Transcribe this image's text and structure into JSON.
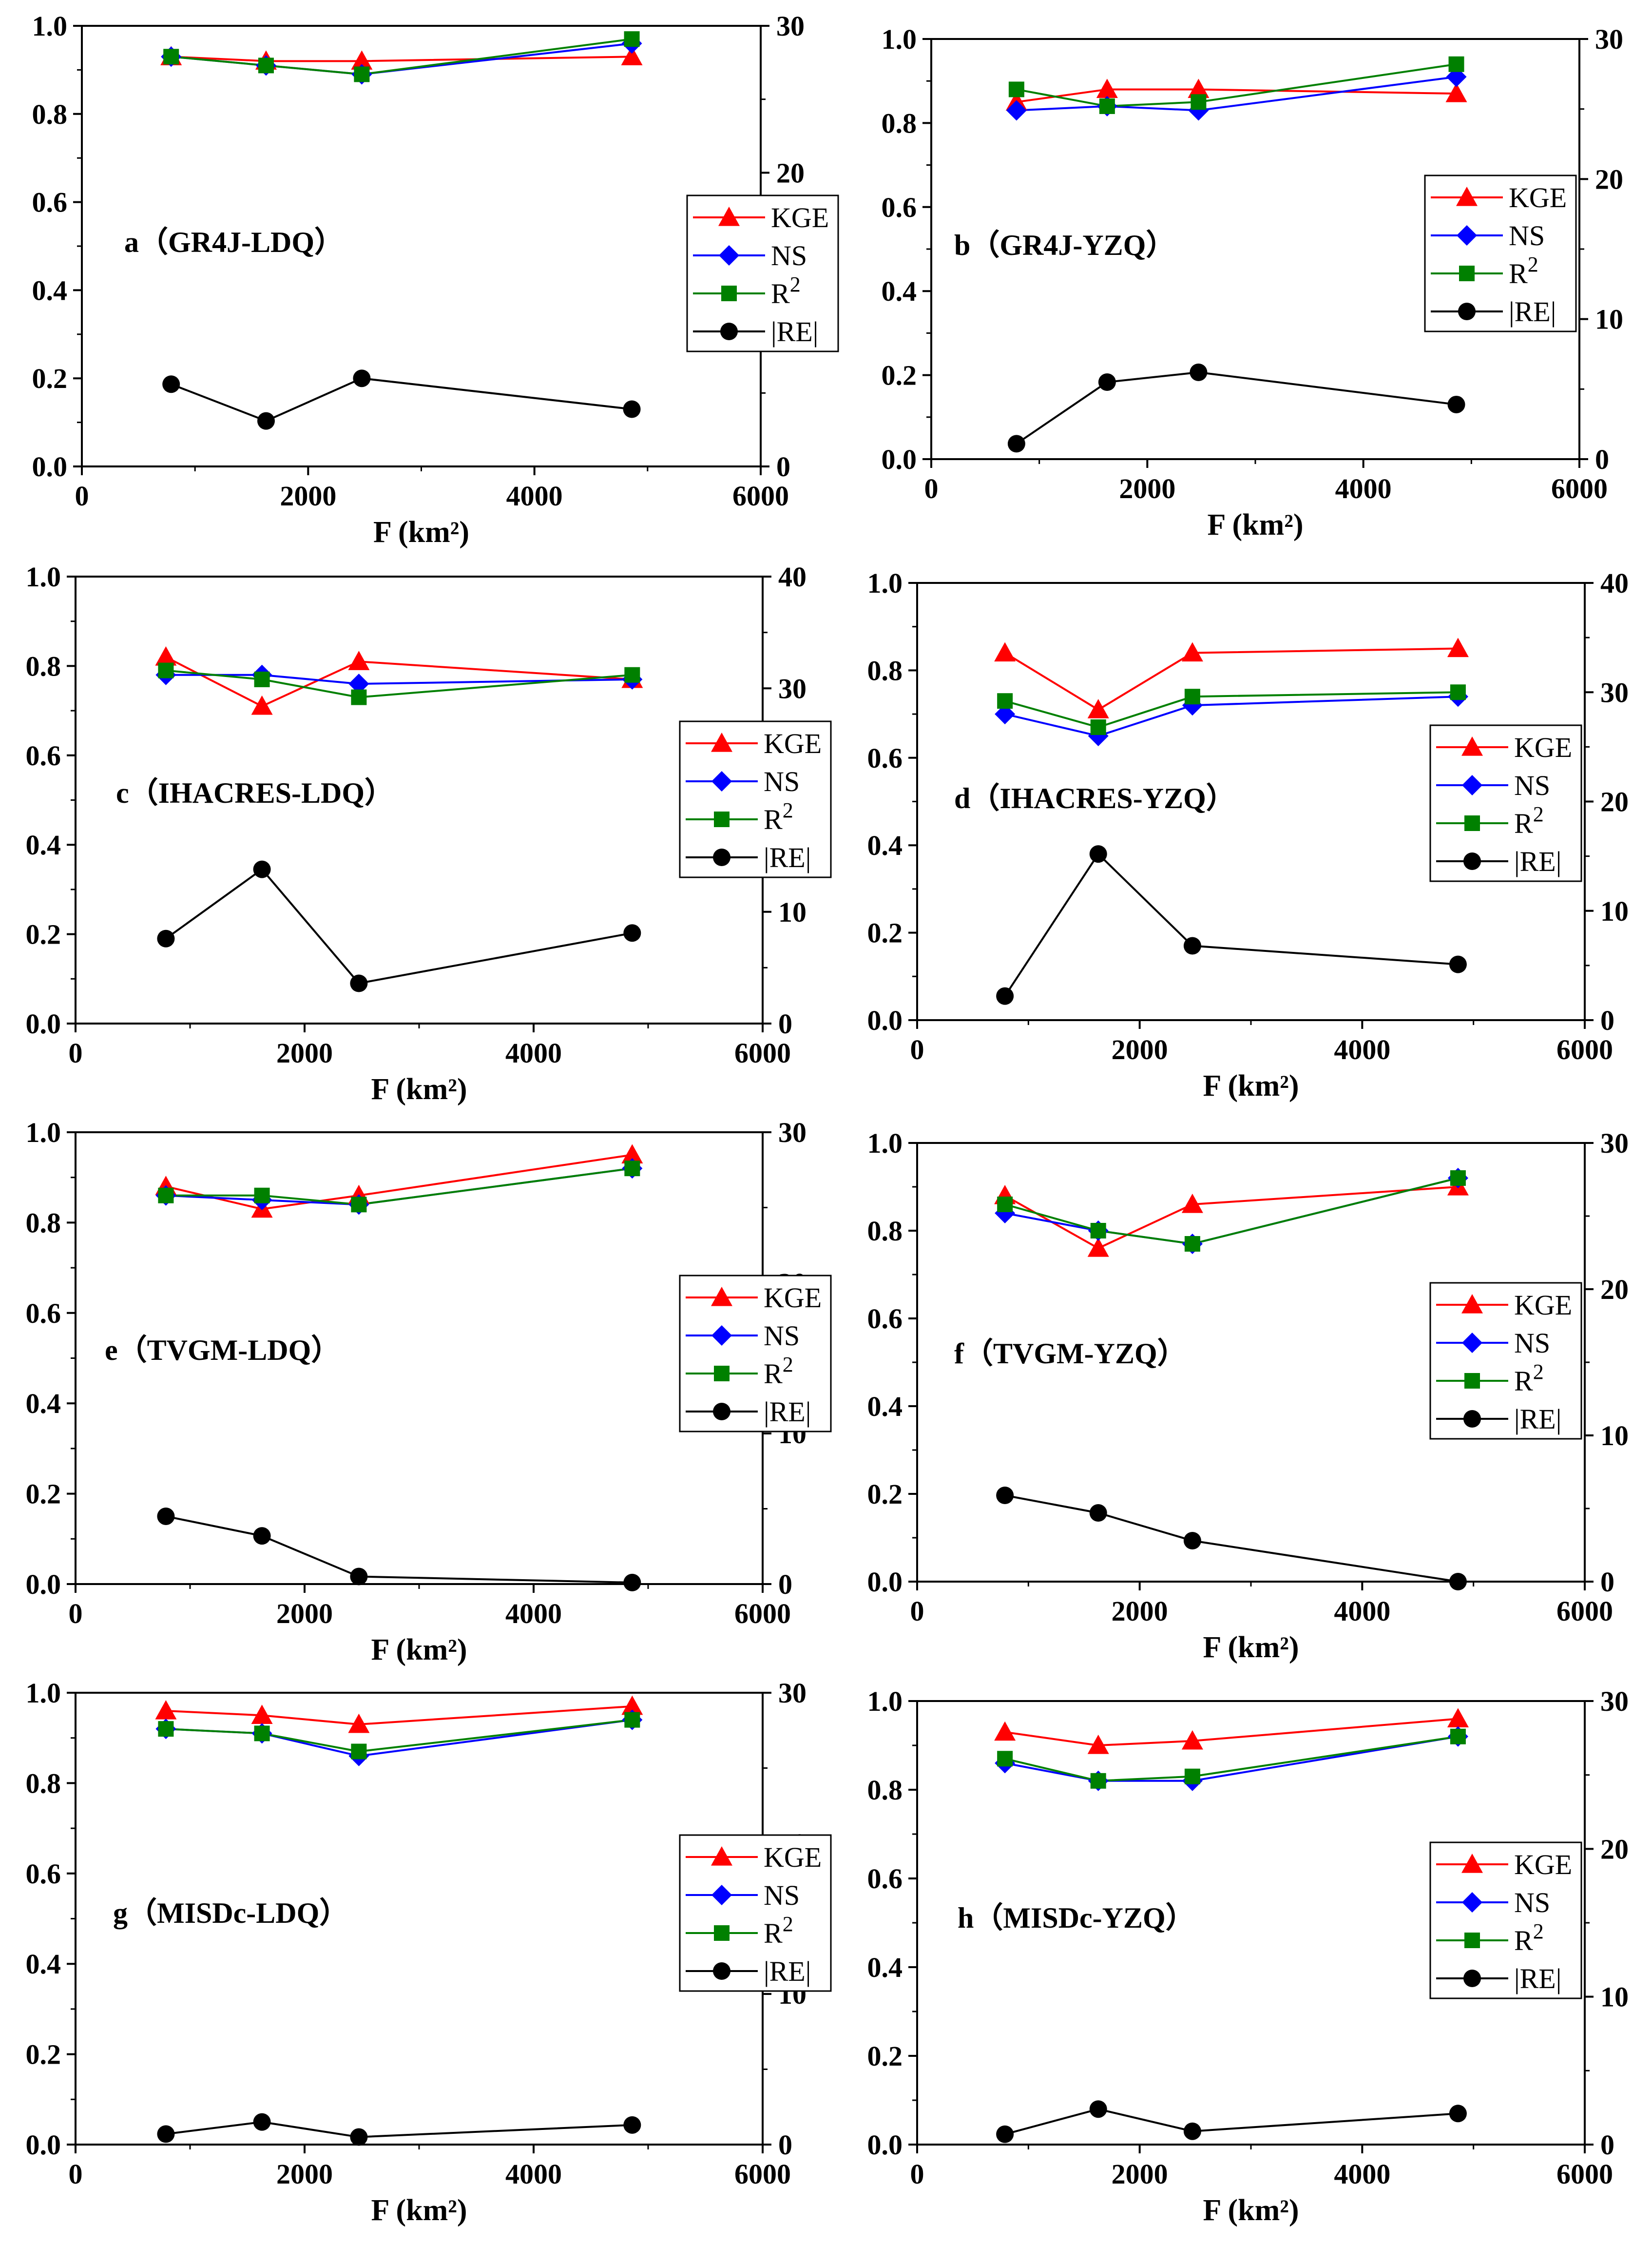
{
  "figure_title": "",
  "colors": {
    "KGE": "#ff0000",
    "NS": "#0000ff",
    "R2": "#008000",
    "RE": "#000000"
  },
  "legend": {
    "KGE": "KGE",
    "NS": "NS",
    "R2_base": "R",
    "R2_sup": "2",
    "RE": "|RE|"
  },
  "chart_data": [
    {
      "type": "line",
      "panel_label": "a（GR4J-LDQ）",
      "xlabel": "F (km²)",
      "x": [
        789,
        1628,
        2474,
        4861
      ],
      "xlim": [
        0,
        6000
      ],
      "xticks": [
        "0",
        "2000",
        "4000",
        "6000"
      ],
      "ylim_left": [
        0,
        1.0
      ],
      "yticks_left": [
        "0.0",
        "0.2",
        "0.4",
        "0.6",
        "0.8",
        "1.0"
      ],
      "ylim_right": [
        0,
        30
      ],
      "yticks_right": [
        "0",
        "10",
        "20",
        "30"
      ],
      "series": [
        {
          "name": "KGE",
          "axis": "left",
          "values": [
            0.93,
            0.92,
            0.92,
            0.93
          ]
        },
        {
          "name": "NS",
          "axis": "left",
          "values": [
            0.93,
            0.91,
            0.89,
            0.96
          ]
        },
        {
          "name": "R2",
          "axis": "left",
          "values": [
            0.93,
            0.91,
            0.89,
            0.97
          ]
        },
        {
          "name": "|RE|",
          "axis": "right",
          "values": [
            5.6,
            3.1,
            6.0,
            3.9
          ]
        }
      ]
    },
    {
      "type": "line",
      "panel_label": "b（GR4J-YZQ）",
      "xlabel": "F (km²)",
      "x": [
        789,
        1628,
        2474,
        4861
      ],
      "xlim": [
        0,
        6000
      ],
      "xticks": [
        "0",
        "2000",
        "4000",
        "6000"
      ],
      "ylim_left": [
        0,
        1.0
      ],
      "yticks_left": [
        "0.0",
        "0.2",
        "0.4",
        "0.6",
        "0.8",
        "1.0"
      ],
      "ylim_right": [
        0,
        30
      ],
      "yticks_right": [
        "0",
        "10",
        "20",
        "30"
      ],
      "series": [
        {
          "name": "KGE",
          "axis": "left",
          "values": [
            0.85,
            0.88,
            0.88,
            0.87
          ]
        },
        {
          "name": "NS",
          "axis": "left",
          "values": [
            0.83,
            0.84,
            0.83,
            0.91
          ]
        },
        {
          "name": "R2",
          "axis": "left",
          "values": [
            0.88,
            0.84,
            0.85,
            0.94
          ]
        },
        {
          "name": "|RE|",
          "axis": "right",
          "values": [
            1.1,
            5.5,
            6.2,
            3.9
          ]
        }
      ]
    },
    {
      "type": "line",
      "panel_label": "c（IHACRES-LDQ）",
      "xlabel": "F (km²)",
      "x": [
        789,
        1628,
        2474,
        4861
      ],
      "xlim": [
        0,
        6000
      ],
      "xticks": [
        "0",
        "2000",
        "4000",
        "6000"
      ],
      "ylim_left": [
        0,
        1.0
      ],
      "yticks_left": [
        "0.0",
        "0.2",
        "0.4",
        "0.6",
        "0.8",
        "1.0"
      ],
      "ylim_right": [
        0,
        40
      ],
      "yticks_right": [
        "0",
        "10",
        "20",
        "30",
        "40"
      ],
      "series": [
        {
          "name": "KGE",
          "axis": "left",
          "values": [
            0.82,
            0.71,
            0.81,
            0.77
          ]
        },
        {
          "name": "NS",
          "axis": "left",
          "values": [
            0.78,
            0.78,
            0.76,
            0.77
          ]
        },
        {
          "name": "R2",
          "axis": "left",
          "values": [
            0.79,
            0.77,
            0.73,
            0.78
          ]
        },
        {
          "name": "|RE|",
          "axis": "right",
          "values": [
            7.6,
            13.8,
            3.6,
            8.1
          ]
        }
      ]
    },
    {
      "type": "line",
      "panel_label": "d（IHACRES-YZQ）",
      "xlabel": "F (km²)",
      "x": [
        789,
        1628,
        2474,
        4861
      ],
      "xlim": [
        0,
        6000
      ],
      "xticks": [
        "0",
        "2000",
        "4000",
        "6000"
      ],
      "ylim_left": [
        0,
        1.0
      ],
      "yticks_left": [
        "0.0",
        "0.2",
        "0.4",
        "0.6",
        "0.8",
        "1.0"
      ],
      "ylim_right": [
        0,
        40
      ],
      "yticks_right": [
        "0",
        "10",
        "20",
        "30",
        "40"
      ],
      "series": [
        {
          "name": "KGE",
          "axis": "left",
          "values": [
            0.84,
            0.71,
            0.84,
            0.85
          ]
        },
        {
          "name": "NS",
          "axis": "left",
          "values": [
            0.7,
            0.65,
            0.72,
            0.74
          ]
        },
        {
          "name": "R2",
          "axis": "left",
          "values": [
            0.73,
            0.67,
            0.74,
            0.75
          ]
        },
        {
          "name": "|RE|",
          "axis": "right",
          "values": [
            2.2,
            15.2,
            6.8,
            5.1
          ]
        }
      ]
    },
    {
      "type": "line",
      "panel_label": "e（TVGM-LDQ）",
      "xlabel": "F (km²)",
      "x": [
        789,
        1628,
        2474,
        4861
      ],
      "xlim": [
        0,
        6000
      ],
      "xticks": [
        "0",
        "2000",
        "4000",
        "6000"
      ],
      "ylim_left": [
        0,
        1.0
      ],
      "yticks_left": [
        "0.0",
        "0.2",
        "0.4",
        "0.6",
        "0.8",
        "1.0"
      ],
      "ylim_right": [
        0,
        30
      ],
      "yticks_right": [
        "0",
        "10",
        "20",
        "30"
      ],
      "series": [
        {
          "name": "KGE",
          "axis": "left",
          "values": [
            0.88,
            0.83,
            0.86,
            0.95
          ]
        },
        {
          "name": "NS",
          "axis": "left",
          "values": [
            0.86,
            0.85,
            0.84,
            0.92
          ]
        },
        {
          "name": "R2",
          "axis": "left",
          "values": [
            0.86,
            0.86,
            0.84,
            0.92
          ]
        },
        {
          "name": "|RE|",
          "axis": "right",
          "values": [
            4.5,
            3.2,
            0.5,
            0.1
          ]
        }
      ]
    },
    {
      "type": "line",
      "panel_label": "f（TVGM-YZQ）",
      "xlabel": "F (km²)",
      "x": [
        789,
        1628,
        2474,
        4861
      ],
      "xlim": [
        0,
        6000
      ],
      "xticks": [
        "0",
        "2000",
        "4000",
        "6000"
      ],
      "ylim_left": [
        0,
        1.0
      ],
      "yticks_left": [
        "0.0",
        "0.2",
        "0.4",
        "0.6",
        "0.8",
        "1.0"
      ],
      "ylim_right": [
        0,
        30
      ],
      "yticks_right": [
        "0",
        "10",
        "20",
        "30"
      ],
      "series": [
        {
          "name": "KGE",
          "axis": "left",
          "values": [
            0.88,
            0.76,
            0.86,
            0.9
          ]
        },
        {
          "name": "NS",
          "axis": "left",
          "values": [
            0.84,
            0.8,
            0.77,
            0.92
          ]
        },
        {
          "name": "R2",
          "axis": "left",
          "values": [
            0.86,
            0.8,
            0.77,
            0.92
          ]
        },
        {
          "name": "|RE|",
          "axis": "right",
          "values": [
            5.9,
            4.7,
            2.8,
            0.0
          ]
        }
      ]
    },
    {
      "type": "line",
      "panel_label": "g（MISDc-LDQ）",
      "xlabel": "F (km²)",
      "x": [
        789,
        1628,
        2474,
        4861
      ],
      "xlim": [
        0,
        6000
      ],
      "xticks": [
        "0",
        "2000",
        "4000",
        "6000"
      ],
      "ylim_left": [
        0,
        1.0
      ],
      "yticks_left": [
        "0.0",
        "0.2",
        "0.4",
        "0.6",
        "0.8",
        "1.0"
      ],
      "ylim_right": [
        0,
        30
      ],
      "yticks_right": [
        "0",
        "10",
        "20",
        "30"
      ],
      "series": [
        {
          "name": "KGE",
          "axis": "left",
          "values": [
            0.96,
            0.95,
            0.93,
            0.97
          ]
        },
        {
          "name": "NS",
          "axis": "left",
          "values": [
            0.92,
            0.91,
            0.86,
            0.94
          ]
        },
        {
          "name": "R2",
          "axis": "left",
          "values": [
            0.92,
            0.91,
            0.87,
            0.94
          ]
        },
        {
          "name": "|RE|",
          "axis": "right",
          "values": [
            0.7,
            1.5,
            0.5,
            1.3
          ]
        }
      ]
    },
    {
      "type": "line",
      "panel_label": "h（MISDc-YZQ）",
      "xlabel": "F (km²)",
      "x": [
        789,
        1628,
        2474,
        4861
      ],
      "xlim": [
        0,
        6000
      ],
      "xticks": [
        "0",
        "2000",
        "4000",
        "6000"
      ],
      "ylim_left": [
        0,
        1.0
      ],
      "yticks_left": [
        "0.0",
        "0.2",
        "0.4",
        "0.6",
        "0.8",
        "1.0"
      ],
      "ylim_right": [
        0,
        30
      ],
      "yticks_right": [
        "0",
        "10",
        "20",
        "30"
      ],
      "series": [
        {
          "name": "KGE",
          "axis": "left",
          "values": [
            0.93,
            0.9,
            0.91,
            0.96
          ]
        },
        {
          "name": "NS",
          "axis": "left",
          "values": [
            0.86,
            0.82,
            0.82,
            0.92
          ]
        },
        {
          "name": "R2",
          "axis": "left",
          "values": [
            0.87,
            0.82,
            0.83,
            0.92
          ]
        },
        {
          "name": "|RE|",
          "axis": "right",
          "values": [
            0.7,
            2.4,
            0.9,
            2.1
          ]
        }
      ]
    }
  ]
}
